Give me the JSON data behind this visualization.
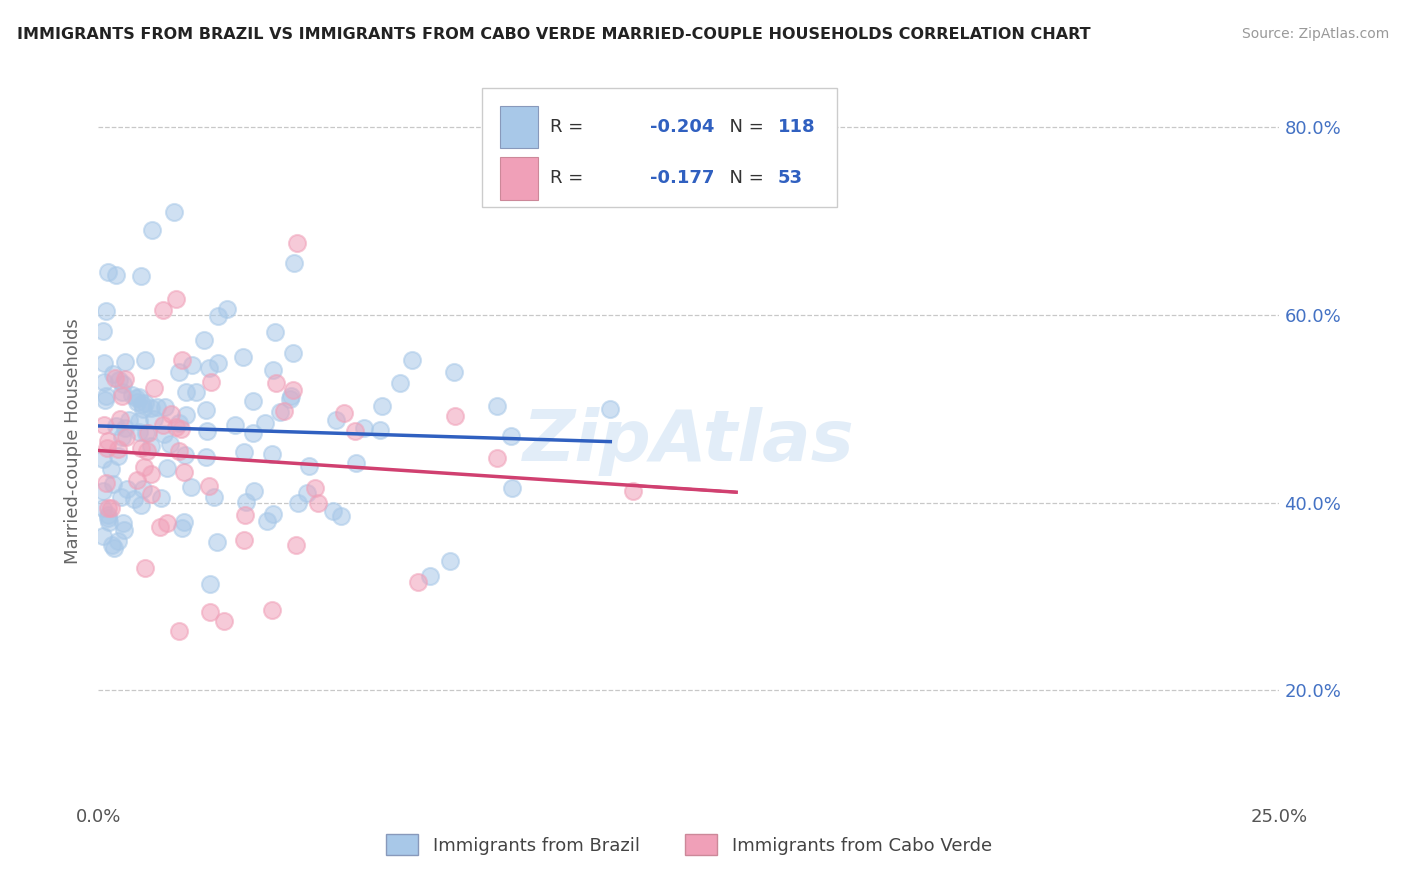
{
  "title": "IMMIGRANTS FROM BRAZIL VS IMMIGRANTS FROM CABO VERDE MARRIED-COUPLE HOUSEHOLDS CORRELATION CHART",
  "source": "Source: ZipAtlas.com",
  "xlabel_brazil": "Immigrants from Brazil",
  "xlabel_caboverde": "Immigrants from Cabo Verde",
  "ylabel": "Married-couple Households",
  "xlim": [
    0.0,
    0.25
  ],
  "ylim": [
    0.08,
    0.85
  ],
  "yticks": [
    0.2,
    0.4,
    0.6,
    0.8
  ],
  "brazil_R": -0.204,
  "brazil_N": 118,
  "caboverde_R": -0.177,
  "caboverde_N": 53,
  "brazil_color": "#a8c8e8",
  "caboverde_color": "#f0a0b8",
  "brazil_line_color": "#3060c0",
  "caboverde_line_color": "#d04070",
  "axis_label_color": "#4472c4",
  "background_color": "#ffffff",
  "grid_color": "#c8c8c8",
  "watermark": "ZipAtlas"
}
